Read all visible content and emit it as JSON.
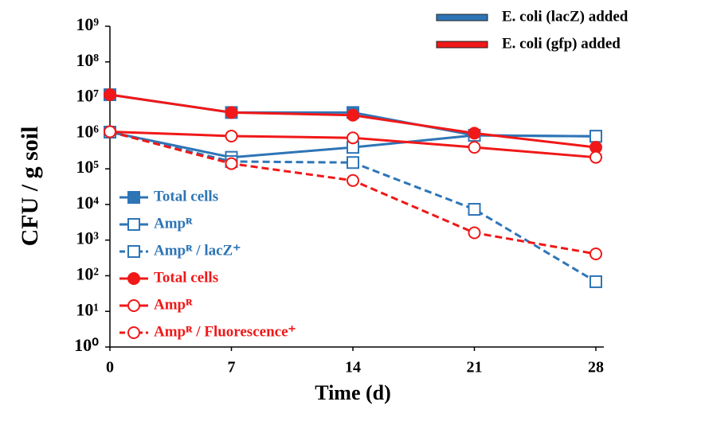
{
  "chart_data": {
    "type": "line",
    "x_label": "Time (d)",
    "y_label": "CFU / g soil",
    "x": [
      0,
      7,
      14,
      21,
      28
    ],
    "xlim": [
      0,
      28
    ],
    "xticks": [
      0,
      7,
      14,
      21,
      28
    ],
    "ylim": [
      1,
      1000000000
    ],
    "y_scale": "log",
    "yticks": [
      {
        "value": 1,
        "label": "10⁰"
      },
      {
        "value": 10,
        "label": "10¹"
      },
      {
        "value": 100,
        "label": "10²"
      },
      {
        "value": 1000,
        "label": "10³"
      },
      {
        "value": 10000,
        "label": "10⁴"
      },
      {
        "value": 100000,
        "label": "10⁵"
      },
      {
        "value": 1000000,
        "label": "10⁶"
      },
      {
        "value": 10000000,
        "label": "10⁷"
      },
      {
        "value": 100000000,
        "label": "10⁸"
      },
      {
        "value": 1000000000,
        "label": "10⁹"
      }
    ],
    "groups": [
      {
        "name": "E. coli (lacZ) added",
        "color": "#2e75b6"
      },
      {
        "name": "E. coli (gfp) added",
        "color": "#f01818"
      }
    ],
    "series": [
      {
        "name": "Total cells",
        "color": "#2e75b6",
        "marker": "square",
        "filled": true,
        "dashed": false,
        "values": [
          12000000,
          3800000,
          3800000,
          870000,
          820000
        ]
      },
      {
        "name": "Ampᴿ",
        "color": "#2e75b6",
        "marker": "square",
        "filled": false,
        "dashed": false,
        "values": [
          1070000,
          210000,
          400000,
          870000,
          820000
        ]
      },
      {
        "name": "Ampᴿ / lacZ⁺",
        "color": "#2e75b6",
        "marker": "square",
        "filled": false,
        "dashed": true,
        "values": [
          1070000,
          160000,
          150000,
          7300,
          68
        ]
      },
      {
        "name": "Total cells",
        "color": "#f01818",
        "marker": "circle",
        "filled": true,
        "dashed": false,
        "values": [
          12000000,
          3800000,
          3200000,
          1000000,
          400000
        ]
      },
      {
        "name": "Ampᴿ",
        "color": "#f01818",
        "marker": "circle",
        "filled": false,
        "dashed": false,
        "values": [
          1100000,
          830000,
          740000,
          400000,
          210000
        ]
      },
      {
        "name": "Ampᴿ / Fluorescence⁺",
        "color": "#f01818",
        "marker": "circle",
        "filled": false,
        "dashed": true,
        "values": [
          1100000,
          140000,
          47000,
          1600,
          410
        ]
      }
    ]
  }
}
